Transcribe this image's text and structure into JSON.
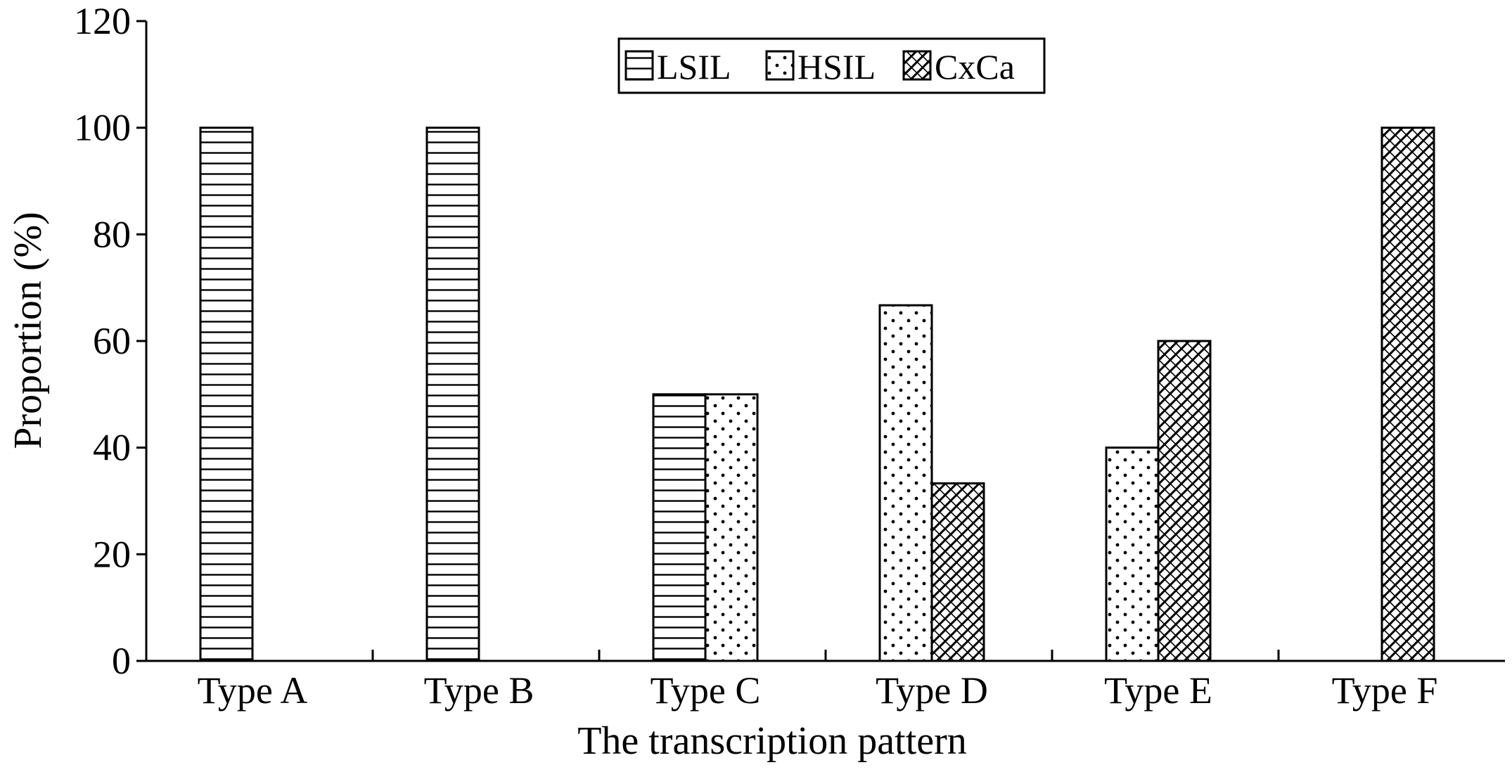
{
  "chart_data": {
    "type": "bar",
    "title": "",
    "xlabel": "The transcription pattern",
    "ylabel": "Proportion (%)",
    "ylim": [
      0,
      120
    ],
    "yticks": [
      "0",
      "20",
      "40",
      "60",
      "80",
      "100",
      "120"
    ],
    "categories": [
      "Type A",
      "Type B",
      "Type C",
      "Type D",
      "Type E",
      "Type F"
    ],
    "series": [
      {
        "name": "LSIL",
        "values": [
          100,
          100,
          50,
          null,
          null,
          null
        ]
      },
      {
        "name": "HSIL",
        "values": [
          null,
          null,
          50,
          66.7,
          40,
          null
        ]
      },
      {
        "name": "CxCa",
        "values": [
          null,
          null,
          null,
          33.3,
          60,
          100
        ]
      }
    ],
    "legend_position": "top-center",
    "grid": false
  }
}
